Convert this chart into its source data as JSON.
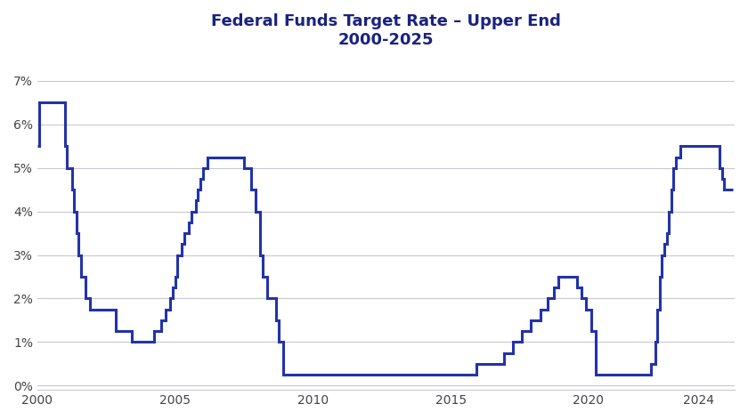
{
  "title_line1": "Federal Funds Target Rate – Upper End",
  "title_line2": "2000-2025",
  "title_color": "#1a237e",
  "line_color": "#2233aa",
  "background_color": "#ffffff",
  "grid_color": "#c8c8d0",
  "tick_label_color": "#444444",
  "xlim": [
    2000,
    2025.3
  ],
  "ylim": [
    -0.001,
    0.075
  ],
  "yticks": [
    0,
    0.01,
    0.02,
    0.03,
    0.04,
    0.05,
    0.06,
    0.07
  ],
  "ytick_labels": [
    "0%",
    "1%",
    "2%",
    "3%",
    "4%",
    "5%",
    "6%",
    "7%"
  ],
  "xticks": [
    2000,
    2005,
    2010,
    2015,
    2020,
    2024
  ],
  "data": [
    [
      2000.0,
      0.055
    ],
    [
      2000.083,
      0.065
    ],
    [
      2000.5,
      0.065
    ],
    [
      2001.0,
      0.055
    ],
    [
      2001.083,
      0.05
    ],
    [
      2001.25,
      0.045
    ],
    [
      2001.333,
      0.04
    ],
    [
      2001.417,
      0.035
    ],
    [
      2001.5,
      0.03
    ],
    [
      2001.583,
      0.025
    ],
    [
      2001.75,
      0.02
    ],
    [
      2001.917,
      0.0175
    ],
    [
      2002.0,
      0.0175
    ],
    [
      2002.75,
      0.0175
    ],
    [
      2002.833,
      0.0125
    ],
    [
      2003.0,
      0.0125
    ],
    [
      2003.417,
      0.01
    ],
    [
      2004.0,
      0.01
    ],
    [
      2004.25,
      0.0125
    ],
    [
      2004.5,
      0.015
    ],
    [
      2004.667,
      0.0175
    ],
    [
      2004.833,
      0.02
    ],
    [
      2004.917,
      0.0225
    ],
    [
      2005.0,
      0.025
    ],
    [
      2005.083,
      0.03
    ],
    [
      2005.25,
      0.0325
    ],
    [
      2005.333,
      0.035
    ],
    [
      2005.5,
      0.0375
    ],
    [
      2005.583,
      0.04
    ],
    [
      2005.75,
      0.0425
    ],
    [
      2005.833,
      0.045
    ],
    [
      2005.917,
      0.0475
    ],
    [
      2006.0,
      0.05
    ],
    [
      2006.167,
      0.0525
    ],
    [
      2006.333,
      0.0525
    ],
    [
      2007.417,
      0.0525
    ],
    [
      2007.5,
      0.05
    ],
    [
      2007.75,
      0.045
    ],
    [
      2007.917,
      0.04
    ],
    [
      2008.0,
      0.04
    ],
    [
      2008.083,
      0.03
    ],
    [
      2008.167,
      0.025
    ],
    [
      2008.333,
      0.02
    ],
    [
      2008.667,
      0.015
    ],
    [
      2008.75,
      0.01
    ],
    [
      2008.917,
      0.0025
    ],
    [
      2009.0,
      0.0025
    ],
    [
      2015.0,
      0.0025
    ],
    [
      2015.917,
      0.005
    ],
    [
      2016.0,
      0.005
    ],
    [
      2016.917,
      0.0075
    ],
    [
      2017.0,
      0.0075
    ],
    [
      2017.25,
      0.01
    ],
    [
      2017.583,
      0.0125
    ],
    [
      2017.917,
      0.015
    ],
    [
      2018.0,
      0.015
    ],
    [
      2018.25,
      0.0175
    ],
    [
      2018.5,
      0.02
    ],
    [
      2018.75,
      0.0225
    ],
    [
      2018.917,
      0.025
    ],
    [
      2019.0,
      0.025
    ],
    [
      2019.583,
      0.0225
    ],
    [
      2019.75,
      0.02
    ],
    [
      2019.917,
      0.0175
    ],
    [
      2020.0,
      0.0175
    ],
    [
      2020.083,
      0.0125
    ],
    [
      2020.25,
      0.0025
    ],
    [
      2022.0,
      0.0025
    ],
    [
      2022.25,
      0.005
    ],
    [
      2022.417,
      0.01
    ],
    [
      2022.5,
      0.0175
    ],
    [
      2022.583,
      0.025
    ],
    [
      2022.667,
      0.03
    ],
    [
      2022.75,
      0.0325
    ],
    [
      2022.833,
      0.035
    ],
    [
      2022.917,
      0.04
    ],
    [
      2023.0,
      0.045
    ],
    [
      2023.083,
      0.05
    ],
    [
      2023.167,
      0.0525
    ],
    [
      2023.333,
      0.055
    ],
    [
      2024.583,
      0.055
    ],
    [
      2024.667,
      0.055
    ],
    [
      2024.75,
      0.05
    ],
    [
      2024.833,
      0.0475
    ],
    [
      2024.917,
      0.045
    ],
    [
      2025.25,
      0.045
    ]
  ]
}
